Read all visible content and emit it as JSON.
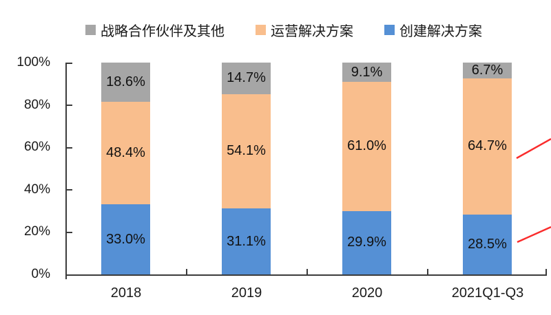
{
  "chart_data": {
    "type": "bar",
    "stacked": true,
    "percent_stacked": true,
    "title": "",
    "xlabel": "",
    "ylabel": "",
    "ylim": [
      0,
      100
    ],
    "yticks": [
      "0%",
      "20%",
      "40%",
      "60%",
      "80%",
      "100%"
    ],
    "grid": false,
    "legend_position": "top",
    "categories": [
      "2018",
      "2019",
      "2020",
      "2021Q1-Q3"
    ],
    "series": [
      {
        "name": "创建解决方案",
        "color": "#5590D5",
        "values": [
          33.0,
          31.1,
          29.9,
          28.5
        ],
        "labels": [
          "33.0%",
          "31.1%",
          "29.9%",
          "28.5%"
        ]
      },
      {
        "name": "运营解决方案",
        "color": "#F9BE8D",
        "values": [
          48.4,
          54.1,
          61.0,
          64.7
        ],
        "labels": [
          "48.4%",
          "54.1%",
          "61.0%",
          "64.7%"
        ]
      },
      {
        "name": "战略合作伙伴及其他",
        "color": "#A6A6A6",
        "values": [
          18.6,
          14.7,
          9.1,
          6.7
        ],
        "labels": [
          "18.6%",
          "14.7%",
          "9.1%",
          "6.7%"
        ]
      }
    ],
    "legend": [
      {
        "label": "战略合作伙伴及其他",
        "color": "#A6A6A6"
      },
      {
        "label": "运营解决方案",
        "color": "#F9BE8D"
      },
      {
        "label": "创建解决方案",
        "color": "#5590D5"
      }
    ],
    "annotations": [
      {
        "type": "callout-line",
        "color": "#FA2C2C",
        "from": [
          750,
          230
        ],
        "to": [
          800,
          202
        ],
        "points_to": "运营解决方案 64.7%"
      },
      {
        "type": "callout-line",
        "color": "#FA2C2C",
        "from": [
          751,
          352
        ],
        "to": [
          800,
          330
        ],
        "points_to": "创建解决方案 28.5%"
      }
    ]
  }
}
